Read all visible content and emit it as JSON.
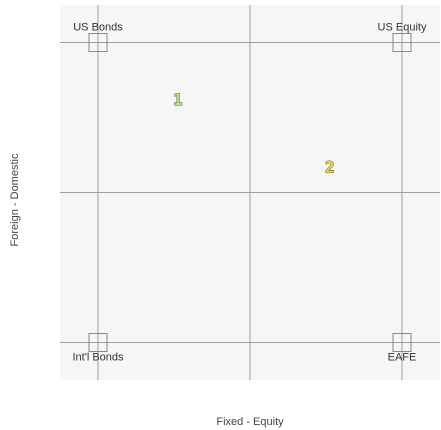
{
  "chart_data": {
    "type": "scatter",
    "xlabel": "Fixed - Equity",
    "ylabel": "Foreign - Domestic",
    "xlim": [
      0,
      1
    ],
    "ylim": [
      0,
      1
    ],
    "grid": true,
    "corner_labels": [
      {
        "name": "US Bonds",
        "x": 0.1,
        "y": 0.9
      },
      {
        "name": "US Equity",
        "x": 0.9,
        "y": 0.9
      },
      {
        "name": "Int'l Bonds",
        "x": 0.1,
        "y": 0.1
      },
      {
        "name": "EAFE",
        "x": 0.9,
        "y": 0.1
      }
    ],
    "points": [
      {
        "label": "1",
        "x": 0.31,
        "y": 0.75,
        "color": "#b5e36b"
      },
      {
        "label": "2",
        "x": 0.71,
        "y": 0.57,
        "color": "#f5d742"
      }
    ]
  },
  "colors": {
    "background": "#f6f6f6",
    "grid": "#a0a0a0",
    "corner_box": "#888888"
  }
}
